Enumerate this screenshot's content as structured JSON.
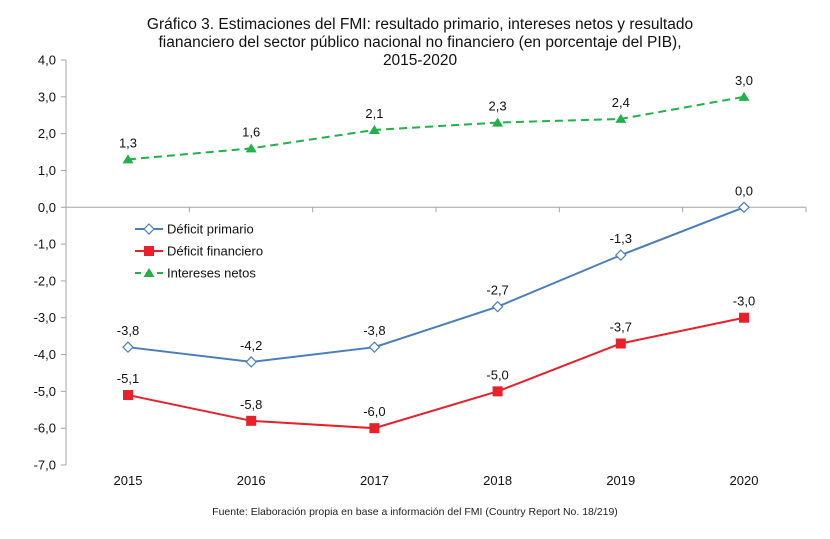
{
  "chart_data": {
    "type": "line",
    "title_lines": [
      "Gráfico 3. Estimaciones del FMI: resultado primario, intereses netos y resultado",
      "fiananciero del sector público nacional no financiero (en porcentaje del PIB),",
      "2015-2020"
    ],
    "categories": [
      "2015",
      "2016",
      "2017",
      "2018",
      "2019",
      "2020"
    ],
    "ylim": [
      -7.0,
      4.0
    ],
    "yticks": [
      "4,0",
      "3,0",
      "2,0",
      "1,0",
      "0,0",
      "-1,0",
      "-2,0",
      "-3,0",
      "-4,0",
      "-5,0",
      "-6,0",
      "-7,0"
    ],
    "ytick_values": [
      4,
      3,
      2,
      1,
      0,
      -1,
      -2,
      -3,
      -4,
      -5,
      -6,
      -7
    ],
    "grid": false,
    "legend_position": "left-middle",
    "series": [
      {
        "name": "Déficit primario",
        "color": "#4a7ebb",
        "marker": "diamond-open",
        "dash": "solid",
        "values": [
          -3.8,
          -4.2,
          -3.8,
          -2.7,
          -1.3,
          0.0
        ],
        "labels": [
          "-3,8",
          "-4,2",
          "-3,8",
          "-2,7",
          "-1,3",
          "0,0"
        ]
      },
      {
        "name": "Déficit financiero",
        "color": "#e8202a",
        "marker": "square",
        "dash": "solid",
        "values": [
          -5.1,
          -5.8,
          -6.0,
          -5.0,
          -3.7,
          -3.0
        ],
        "labels": [
          "-5,1",
          "-5,8",
          "-6,0",
          "-5,0",
          "-3,7",
          "-3,0"
        ]
      },
      {
        "name": "Intereses netos",
        "color": "#22b04a",
        "marker": "triangle",
        "dash": "dashed",
        "values": [
          1.3,
          1.6,
          2.1,
          2.3,
          2.4,
          3.0
        ],
        "labels": [
          "1,3",
          "1,6",
          "2,1",
          "2,3",
          "2,4",
          "3,0"
        ]
      }
    ],
    "source": "Fuente: Elaboración propia en base a información del FMI (Country Report No. 18/219)"
  }
}
